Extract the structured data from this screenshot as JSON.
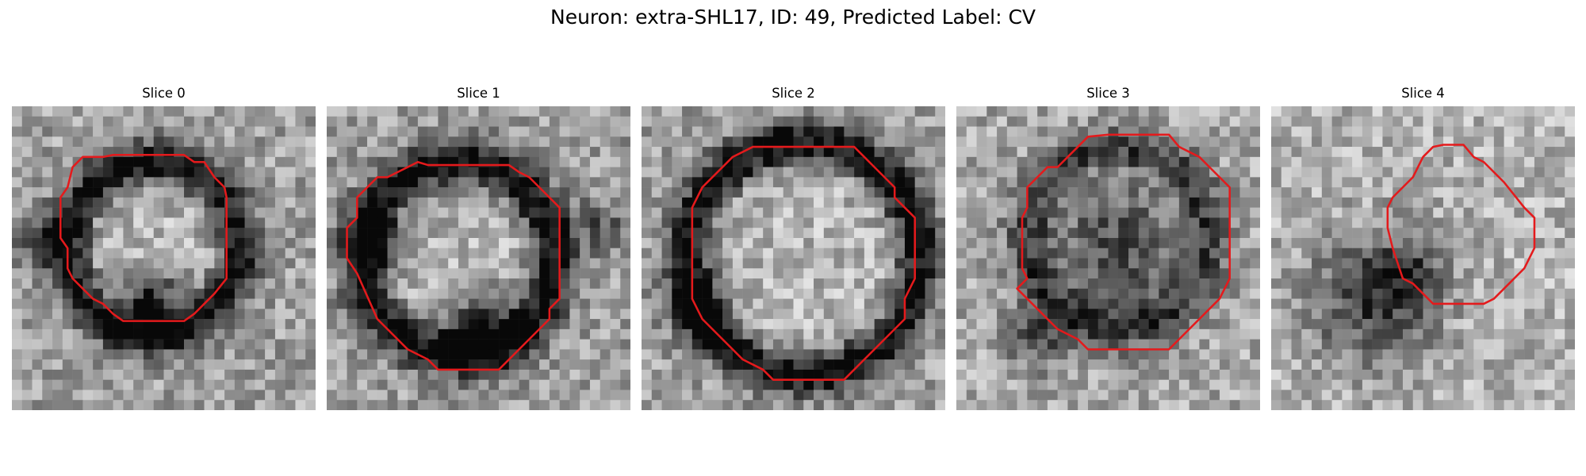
{
  "figure": {
    "title": "Neuron: extra-SHL17, ID: 49, Predicted Label: CV"
  },
  "panels": [
    {
      "title": "Slice 0"
    },
    {
      "title": "Slice 1"
    },
    {
      "title": "Slice 2"
    },
    {
      "title": "Slice 3"
    },
    {
      "title": "Slice 4"
    }
  ],
  "contour_color": "#e41a1c"
}
